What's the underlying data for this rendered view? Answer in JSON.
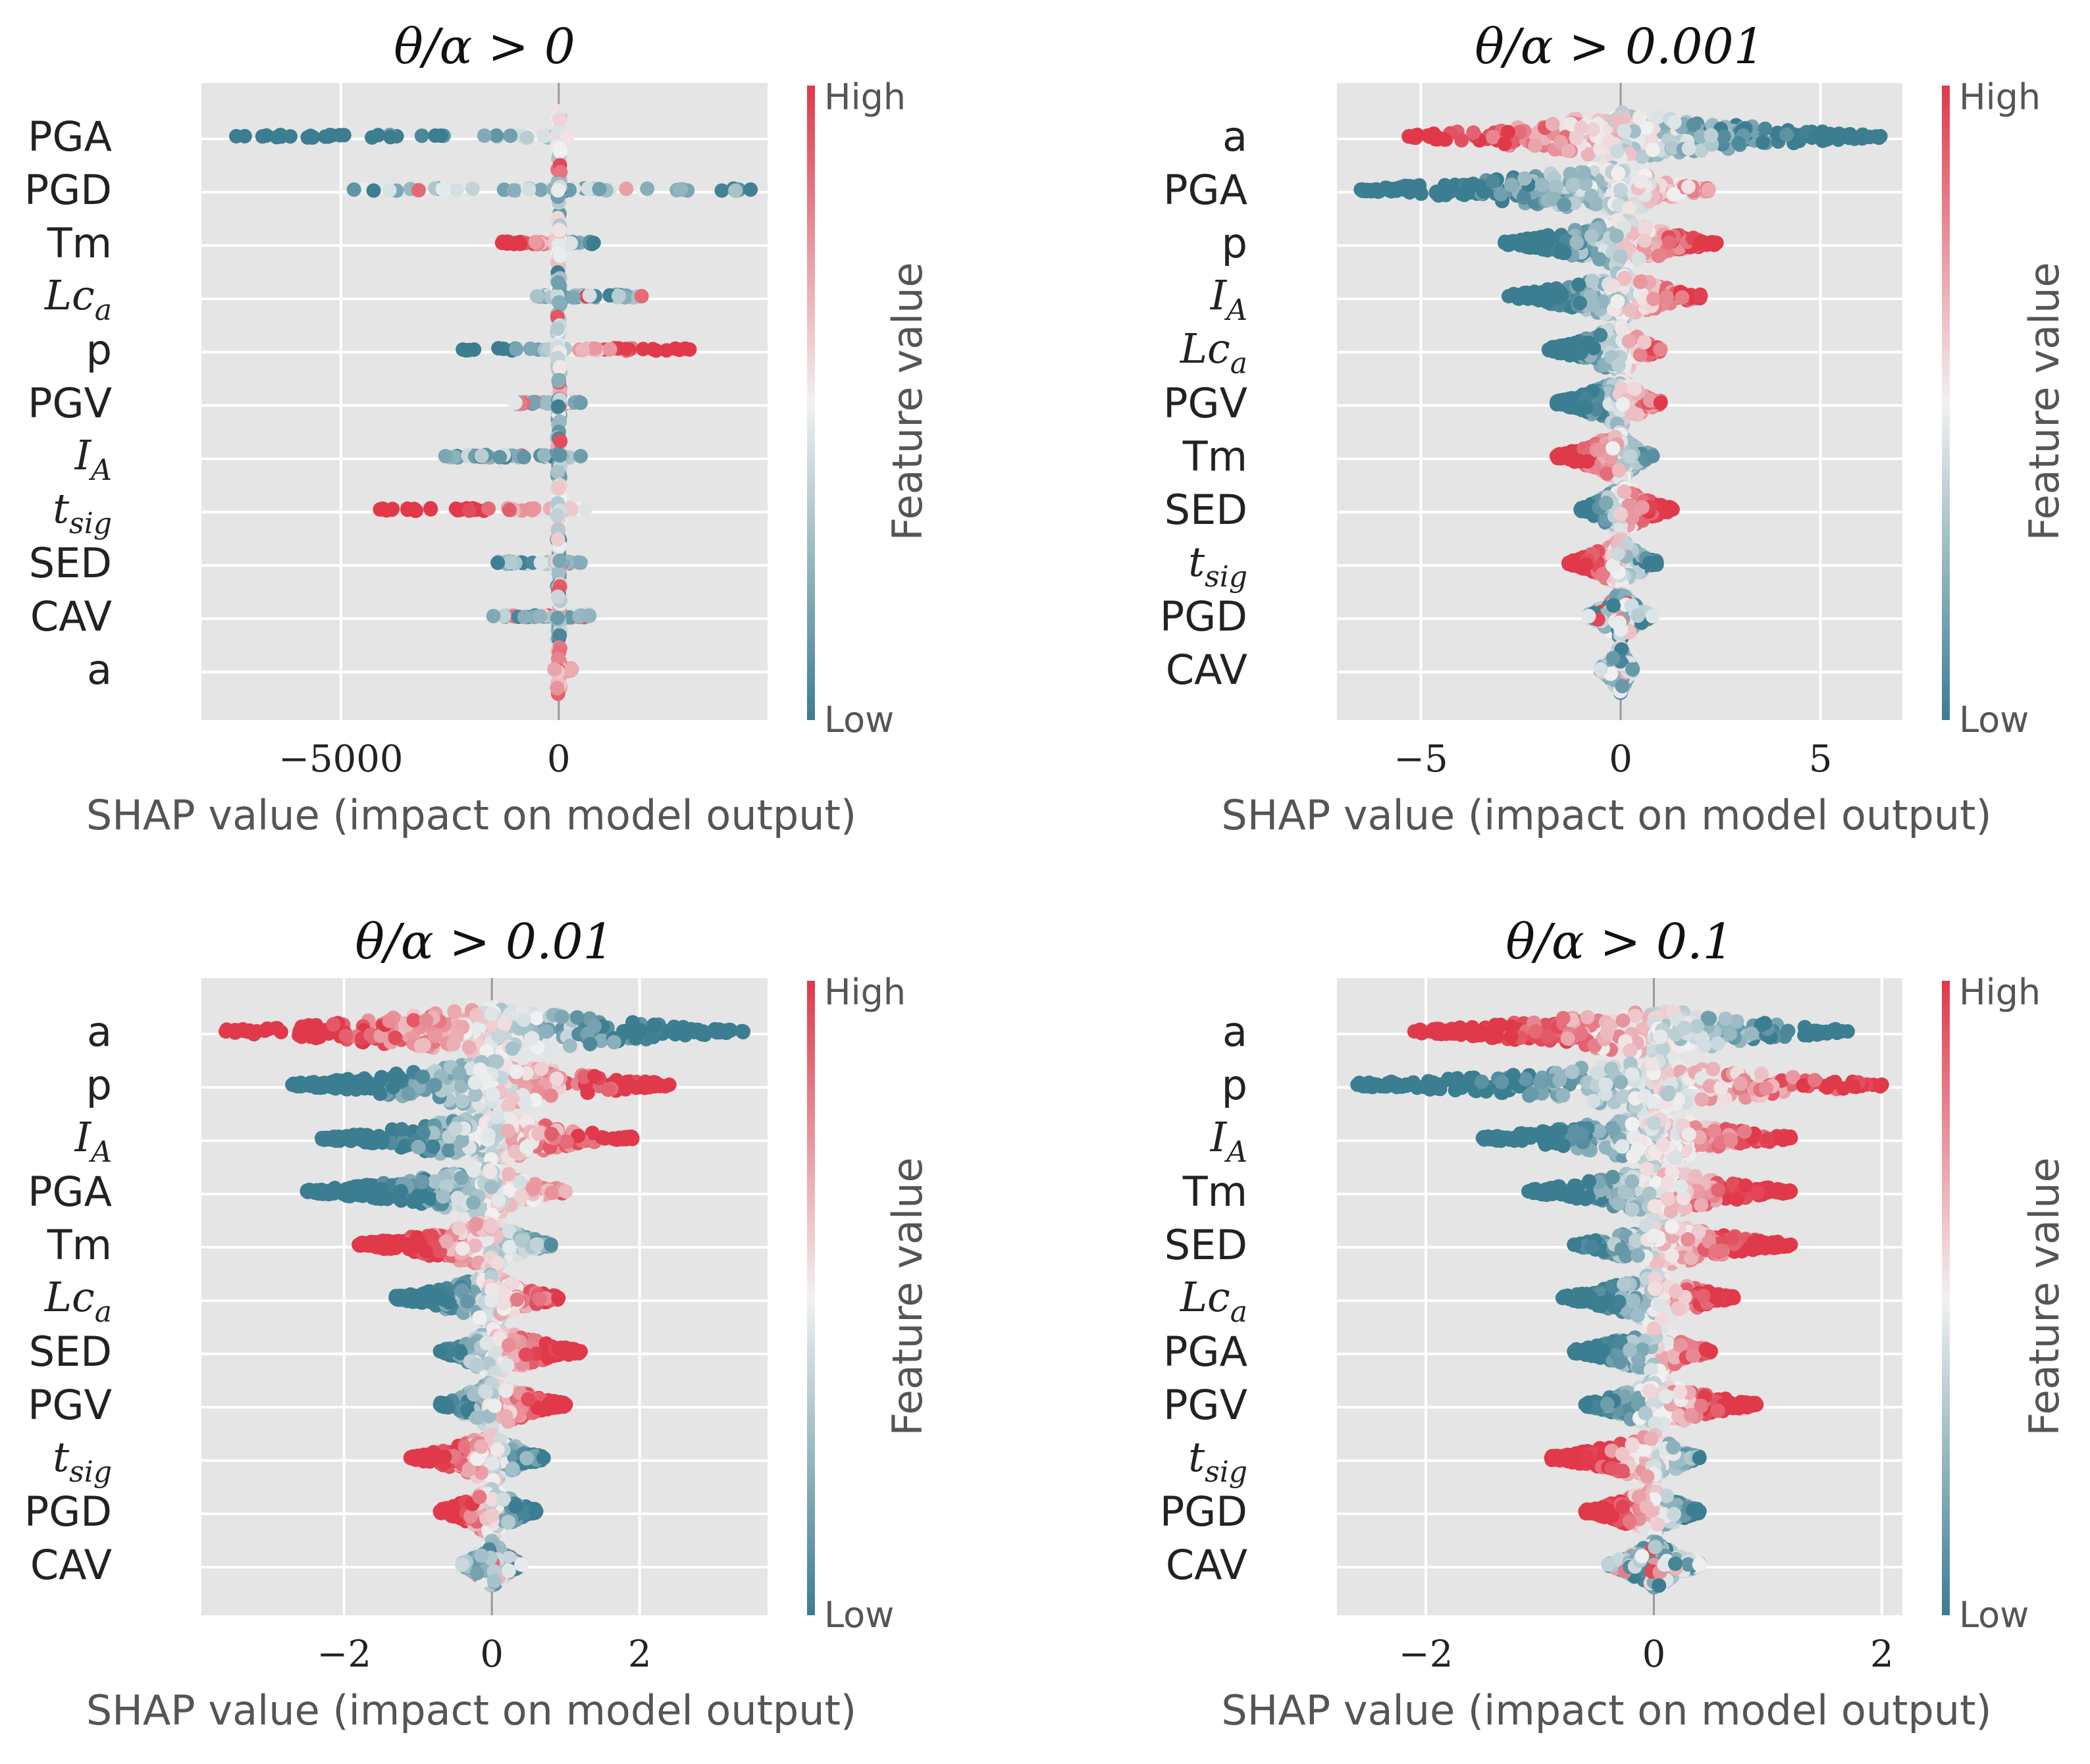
{
  "colors": {
    "low": "#3b7d91",
    "mid": "#f1f1f1",
    "high": "#e0394a",
    "background": "#e5e5e5",
    "text": "#333333",
    "axis_text": "#555555"
  },
  "chart_data": [
    {
      "type": "scatter",
      "subtype": "shap-beeswarm",
      "style": "sparse",
      "title": "θ/α > 0",
      "xlabel": "SHAP value (impact on model output)",
      "xlim": [
        -8200,
        4790
      ],
      "xticks": [
        -5000,
        0
      ],
      "xtick_labels": [
        "−5000",
        "0"
      ],
      "colorbar": {
        "label": "Feature value",
        "high": "High",
        "low": "Low"
      },
      "features": [
        {
          "name": "PGA",
          "min": -7400,
          "max": 200,
          "high_side": "right"
        },
        {
          "name": "PGD",
          "min": -4700,
          "max": 4400,
          "high_side": "mixed"
        },
        {
          "name": "Tm",
          "min": -1300,
          "max": 800,
          "high_side": "left"
        },
        {
          "name": "Lc_a",
          "min": -500,
          "max": 1900,
          "high_side": "mixed"
        },
        {
          "name": "p",
          "min": -2200,
          "max": 3000,
          "high_side": "right"
        },
        {
          "name": "PGV",
          "min": -1000,
          "max": 500,
          "high_side": "mixed"
        },
        {
          "name": "I_A",
          "min": -2600,
          "max": 500,
          "high_side": "mixed"
        },
        {
          "name": "t_sig",
          "min": -4100,
          "max": 600,
          "high_side": "left"
        },
        {
          "name": "SED",
          "min": -1400,
          "max": 500,
          "high_side": "mixed"
        },
        {
          "name": "CAV",
          "min": -1500,
          "max": 700,
          "high_side": "mixed"
        },
        {
          "name": "a",
          "min": -100,
          "max": 300,
          "high_side": "pink"
        }
      ]
    },
    {
      "type": "scatter",
      "subtype": "shap-beeswarm",
      "style": "dense",
      "title": "θ/α > 0.001",
      "xlabel": "SHAP value (impact on model output)",
      "xlim": [
        -7.1,
        7.05
      ],
      "xticks": [
        -5,
        0,
        5
      ],
      "xtick_labels": [
        "−5",
        "0",
        "5"
      ],
      "colorbar": {
        "label": "Feature value",
        "high": "High",
        "low": "Low"
      },
      "features": [
        {
          "name": "a",
          "min": -5.3,
          "max": 6.5,
          "high_side": "left"
        },
        {
          "name": "PGA",
          "min": -6.5,
          "max": 2.2,
          "high_side": "right"
        },
        {
          "name": "p",
          "min": -2.9,
          "max": 2.4,
          "high_side": "right"
        },
        {
          "name": "I_A",
          "min": -2.8,
          "max": 2.0,
          "high_side": "right"
        },
        {
          "name": "Lc_a",
          "min": -1.8,
          "max": 1.0,
          "high_side": "right"
        },
        {
          "name": "PGV",
          "min": -1.6,
          "max": 1.0,
          "high_side": "right"
        },
        {
          "name": "Tm",
          "min": -1.6,
          "max": 0.8,
          "high_side": "left"
        },
        {
          "name": "SED",
          "min": -1.0,
          "max": 1.3,
          "high_side": "right"
        },
        {
          "name": "t_sig",
          "min": -1.3,
          "max": 0.9,
          "high_side": "left"
        },
        {
          "name": "PGD",
          "min": -0.8,
          "max": 0.8,
          "high_side": "mixed"
        },
        {
          "name": "CAV",
          "min": -0.5,
          "max": 0.3,
          "high_side": "mixed"
        }
      ]
    },
    {
      "type": "scatter",
      "subtype": "shap-beeswarm",
      "style": "dense",
      "title": "θ/α > 0.01",
      "xlabel": "SHAP value (impact on model output)",
      "xlim": [
        -3.93,
        3.73
      ],
      "xticks": [
        -2,
        0,
        2
      ],
      "xtick_labels": [
        "−2",
        "0",
        "2"
      ],
      "colorbar": {
        "label": "Feature value",
        "high": "High",
        "low": "Low"
      },
      "features": [
        {
          "name": "a",
          "min": -3.6,
          "max": 3.4,
          "high_side": "left"
        },
        {
          "name": "p",
          "min": -2.7,
          "max": 2.4,
          "high_side": "right"
        },
        {
          "name": "I_A",
          "min": -2.3,
          "max": 1.9,
          "high_side": "right"
        },
        {
          "name": "PGA",
          "min": -2.5,
          "max": 1.0,
          "high_side": "right"
        },
        {
          "name": "Tm",
          "min": -1.8,
          "max": 0.8,
          "high_side": "left"
        },
        {
          "name": "Lc_a",
          "min": -1.3,
          "max": 0.9,
          "high_side": "right"
        },
        {
          "name": "SED",
          "min": -0.7,
          "max": 1.2,
          "high_side": "right"
        },
        {
          "name": "PGV",
          "min": -0.7,
          "max": 1.0,
          "high_side": "right"
        },
        {
          "name": "t_sig",
          "min": -1.1,
          "max": 0.7,
          "high_side": "left"
        },
        {
          "name": "PGD",
          "min": -0.7,
          "max": 0.6,
          "high_side": "left"
        },
        {
          "name": "CAV",
          "min": -0.4,
          "max": 0.4,
          "high_side": "mixed"
        }
      ]
    },
    {
      "type": "scatter",
      "subtype": "shap-beeswarm",
      "style": "dense",
      "title": "θ/α > 0.1",
      "xlabel": "SHAP value (impact on model output)",
      "xlim": [
        -2.78,
        2.18
      ],
      "xticks": [
        -2,
        0,
        2
      ],
      "xtick_labels": [
        "−2",
        "0",
        "2"
      ],
      "colorbar": {
        "label": "Feature value",
        "high": "High",
        "low": "Low"
      },
      "features": [
        {
          "name": "a",
          "min": -2.1,
          "max": 1.7,
          "high_side": "left"
        },
        {
          "name": "p",
          "min": -2.6,
          "max": 2.0,
          "high_side": "right"
        },
        {
          "name": "I_A",
          "min": -1.5,
          "max": 1.2,
          "high_side": "right"
        },
        {
          "name": "Tm",
          "min": -1.1,
          "max": 1.2,
          "high_side": "right"
        },
        {
          "name": "SED",
          "min": -0.7,
          "max": 1.2,
          "high_side": "right"
        },
        {
          "name": "Lc_a",
          "min": -0.8,
          "max": 0.7,
          "high_side": "right"
        },
        {
          "name": "PGA",
          "min": -0.7,
          "max": 0.5,
          "high_side": "right"
        },
        {
          "name": "PGV",
          "min": -0.6,
          "max": 0.9,
          "high_side": "right"
        },
        {
          "name": "t_sig",
          "min": -0.9,
          "max": 0.4,
          "high_side": "left"
        },
        {
          "name": "PGD",
          "min": -0.6,
          "max": 0.4,
          "high_side": "left"
        },
        {
          "name": "CAV",
          "min": -0.4,
          "max": 0.4,
          "high_side": "mixed"
        }
      ]
    }
  ]
}
